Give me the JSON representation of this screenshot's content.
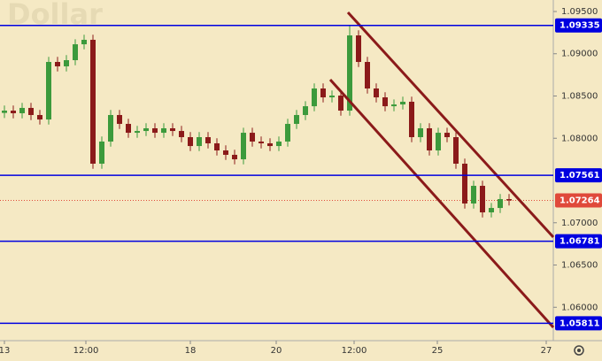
{
  "chart_data": {
    "type": "candlestick",
    "title": "Dollar",
    "up_color": "#3c9a3c",
    "down_color": "#8b1a1a",
    "open": [
      1.083,
      1.08327,
      1.08296,
      1.08359,
      1.08275,
      1.08222,
      1.08903,
      1.08851,
      1.08924,
      1.09112,
      1.09165,
      1.07699,
      1.07961,
      1.08275,
      1.0817,
      1.08065,
      1.08086,
      1.08118,
      1.08065,
      1.08118,
      1.08086,
      1.08013,
      1.07908,
      1.08013,
      1.0794,
      1.07856,
      1.07804,
      1.07751,
      1.08065,
      1.07961,
      1.0794,
      1.07908,
      1.07961,
      1.0817,
      1.08275,
      1.08379,
      1.08589,
      1.08484,
      1.08505,
      1.08327,
      1.09217,
      1.08903,
      1.08589,
      1.08484,
      1.08379,
      1.084,
      1.08432,
      1.08013,
      1.08118,
      1.07856,
      1.08065,
      1.08013,
      1.07699,
      1.07228,
      1.07437,
      1.07123,
      1.07175,
      1.0728
    ],
    "high": [
      1.08387,
      1.08387,
      1.08419,
      1.08419,
      1.08335,
      1.08963,
      1.08963,
      1.08984,
      1.09172,
      1.09225,
      1.09225,
      1.08021,
      1.08335,
      1.08335,
      1.0823,
      1.08146,
      1.08178,
      1.08178,
      1.08178,
      1.08178,
      1.08146,
      1.08073,
      1.08073,
      1.08073,
      1.08,
      1.07916,
      1.07864,
      1.08125,
      1.08125,
      1.08021,
      1.08,
      1.08021,
      1.0823,
      1.08335,
      1.08439,
      1.08649,
      1.08649,
      1.08565,
      1.08565,
      1.09335,
      1.09277,
      1.08963,
      1.08649,
      1.08544,
      1.0846,
      1.08492,
      1.08492,
      1.08178,
      1.08178,
      1.08125,
      1.08125,
      1.08073,
      1.07759,
      1.07497,
      1.07497,
      1.07235,
      1.0734,
      1.0734
    ],
    "low": [
      1.0824,
      1.08236,
      1.08236,
      1.08215,
      1.08162,
      1.08162,
      1.08791,
      1.08791,
      1.08864,
      1.09052,
      1.07639,
      1.07639,
      1.07901,
      1.0811,
      1.08005,
      1.08005,
      1.08026,
      1.08005,
      1.08005,
      1.08026,
      1.07953,
      1.07848,
      1.07848,
      1.0788,
      1.07796,
      1.07744,
      1.07691,
      1.07691,
      1.07901,
      1.0788,
      1.07848,
      1.07848,
      1.07901,
      1.0811,
      1.08215,
      1.08319,
      1.08424,
      1.08424,
      1.08267,
      1.08267,
      1.08843,
      1.08529,
      1.08424,
      1.08319,
      1.08319,
      1.0834,
      1.07953,
      1.07953,
      1.07796,
      1.07796,
      1.07953,
      1.07639,
      1.07168,
      1.07168,
      1.07063,
      1.07063,
      1.07115,
      1.07204
    ],
    "close": [
      1.08327,
      1.08296,
      1.08359,
      1.08275,
      1.08222,
      1.08903,
      1.08851,
      1.08924,
      1.09112,
      1.09165,
      1.07699,
      1.07961,
      1.08275,
      1.0817,
      1.08065,
      1.08086,
      1.08118,
      1.08065,
      1.08118,
      1.08086,
      1.08013,
      1.07908,
      1.08013,
      1.0794,
      1.07856,
      1.07804,
      1.07751,
      1.08065,
      1.07961,
      1.0794,
      1.07908,
      1.07961,
      1.0817,
      1.08275,
      1.08379,
      1.08589,
      1.08484,
      1.08505,
      1.08327,
      1.09217,
      1.08903,
      1.08589,
      1.08484,
      1.08379,
      1.084,
      1.08432,
      1.08013,
      1.08118,
      1.07856,
      1.08065,
      1.08013,
      1.07699,
      1.07228,
      1.07437,
      1.07123,
      1.07175,
      1.0728,
      1.07264
    ],
    "xlim": [
      -0.5,
      62
    ],
    "xticks": [
      {
        "value": 0,
        "label": "13"
      },
      {
        "value": 9.2,
        "label": "12:00"
      },
      {
        "value": 21,
        "label": "18"
      },
      {
        "value": 30.7,
        "label": "20"
      },
      {
        "value": 39.5,
        "label": "12:00"
      },
      {
        "value": 48.9,
        "label": "25"
      },
      {
        "value": 61.2,
        "label": "27"
      }
    ],
    "ylim": [
      1.05605,
      1.09636
    ],
    "yticks": [
      {
        "value": 1.095,
        "label": "1.09500"
      },
      {
        "value": 1.09,
        "label": "1.09000"
      },
      {
        "value": 1.085,
        "label": "1.08500"
      },
      {
        "value": 1.08,
        "label": "1.08000"
      },
      {
        "value": 1.07,
        "label": "1.07000"
      },
      {
        "value": 1.065,
        "label": "1.06500"
      },
      {
        "value": 1.06,
        "label": "1.06000"
      }
    ],
    "levels": [
      {
        "value": 1.09335,
        "color": "#0000e0"
      },
      {
        "value": 1.07561,
        "color": "#0000e0"
      },
      {
        "value": 1.06781,
        "color": "#0000e0"
      },
      {
        "value": 1.05811,
        "color": "#0000e0"
      }
    ],
    "last_price": {
      "value": 1.07264,
      "color": "#e0493a"
    },
    "trend_lines": [
      {
        "color": "#8b1a1a",
        "x": [
          38.8,
          62
        ],
        "y": [
          1.09489,
          1.0683
        ]
      },
      {
        "color": "#8b1a1a",
        "x": [
          36.8,
          62
        ],
        "y": [
          1.08694,
          1.05762
        ]
      }
    ]
  }
}
